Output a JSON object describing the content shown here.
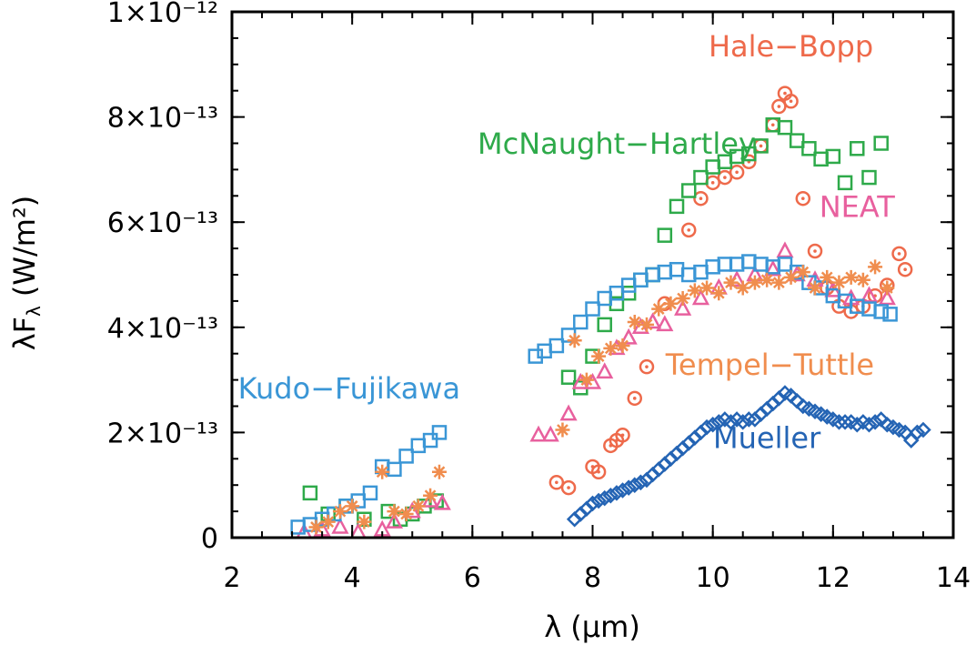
{
  "chart_data": {
    "type": "scatter",
    "xlabel": "λ (μm)",
    "ylabel": "λF",
    "ylabel_sub": "λ",
    "ylabel_unit": "(W/m²)",
    "xlim": [
      2,
      14
    ],
    "ylim": [
      0,
      1e-12
    ],
    "x_ticks": [
      {
        "value": 2,
        "label": "2"
      },
      {
        "value": 4,
        "label": "4"
      },
      {
        "value": 6,
        "label": "6"
      },
      {
        "value": 8,
        "label": "8"
      },
      {
        "value": 10,
        "label": "10"
      },
      {
        "value": 12,
        "label": "12"
      },
      {
        "value": 14,
        "label": "14"
      }
    ],
    "y_ticks": [
      {
        "value": 0,
        "label": "0"
      },
      {
        "value": 2e-13,
        "label": "2×10⁻¹³"
      },
      {
        "value": 4e-13,
        "label": "4×10⁻¹³"
      },
      {
        "value": 6e-13,
        "label": "6×10⁻¹³"
      },
      {
        "value": 8e-13,
        "label": "8×10⁻¹³"
      },
      {
        "value": 1e-12,
        "label": "1×10⁻¹²"
      }
    ],
    "grid": false,
    "series": [
      {
        "name": "Hale-Bopp",
        "color": "#ee6a4b",
        "marker": "circle-dot",
        "label_at": [
          11.3,
          9.15e-13
        ],
        "x": [
          7.4,
          7.6,
          8.0,
          8.1,
          8.3,
          8.4,
          8.5,
          8.7,
          8.9,
          9.2,
          9.6,
          9.8,
          10.0,
          10.2,
          10.4,
          10.6,
          10.8,
          11.0,
          11.1,
          11.2,
          11.3,
          11.5,
          11.7,
          11.9,
          12.1,
          12.3,
          12.5,
          12.7,
          12.9,
          13.1,
          13.2
        ],
        "y": [
          1.05e-13,
          9.5e-14,
          1.35e-13,
          1.25e-13,
          1.75e-13,
          1.85e-13,
          1.95e-13,
          2.65e-13,
          3.25e-13,
          4.45e-13,
          5.85e-13,
          6.45e-13,
          6.75e-13,
          6.85e-13,
          6.95e-13,
          7.15e-13,
          7.45e-13,
          7.85e-13,
          8.2e-13,
          8.45e-13,
          8.3e-13,
          6.45e-13,
          5.45e-13,
          4.75e-13,
          4.4e-13,
          4.3e-13,
          4.4e-13,
          4.6e-13,
          4.8e-13,
          5.4e-13,
          5.1e-13
        ]
      },
      {
        "name": "McNaught-Hartley",
        "color": "#2eaa4a",
        "marker": "square",
        "label_at": [
          8.4,
          7.3e-13
        ],
        "x": [
          3.3,
          3.6,
          3.9,
          4.2,
          4.6,
          4.8,
          5.0,
          5.2,
          5.4,
          7.6,
          7.8,
          8.0,
          8.2,
          8.4,
          8.6,
          8.8,
          9.0,
          9.2,
          9.4,
          9.6,
          9.8,
          10.0,
          10.2,
          10.4,
          10.6,
          10.8,
          11.0,
          11.2,
          11.4,
          11.6,
          11.8,
          12.0,
          12.2,
          12.4,
          12.6,
          12.8
        ],
        "y": [
          8.5e-14,
          4.5e-14,
          6e-14,
          3.5e-14,
          5e-14,
          3.5e-14,
          4.5e-14,
          6e-14,
          7e-14,
          3.05e-13,
          2.85e-13,
          3.45e-13,
          4.05e-13,
          4.45e-13,
          4.65e-13,
          4.9e-13,
          5e-13,
          5.75e-13,
          6.3e-13,
          6.6e-13,
          6.85e-13,
          7.05e-13,
          7.15e-13,
          7.25e-13,
          7.3e-13,
          7.45e-13,
          7.85e-13,
          7.8e-13,
          7.55e-13,
          7.4e-13,
          7.2e-13,
          7.25e-13,
          6.75e-13,
          7.4e-13,
          6.85e-13,
          7.5e-13
        ]
      },
      {
        "name": "NEAT",
        "color": "#e8609e",
        "marker": "triangle",
        "label_at": [
          12.4,
          6.1e-13
        ],
        "x": [
          3.2,
          3.5,
          3.8,
          4.1,
          4.5,
          4.7,
          5.0,
          5.3,
          5.5,
          7.1,
          7.3,
          7.6,
          7.8,
          8.0,
          8.2,
          8.4,
          8.6,
          8.8,
          9.0,
          9.2,
          9.5,
          9.8,
          10.1,
          10.4,
          10.7,
          11.0,
          11.2,
          11.4,
          11.7,
          12.0,
          12.3,
          12.6,
          12.9
        ],
        "y": [
          1e-14,
          1.5e-14,
          2e-14,
          1e-14,
          1.5e-14,
          3e-14,
          5e-14,
          7e-14,
          6.5e-14,
          1.95e-13,
          1.95e-13,
          2.35e-13,
          2.95e-13,
          2.95e-13,
          3.15e-13,
          3.6e-13,
          3.8e-13,
          4e-13,
          4.1e-13,
          4.05e-13,
          4.35e-13,
          4.55e-13,
          4.75e-13,
          4.9e-13,
          5e-13,
          5.1e-13,
          5.45e-13,
          5e-13,
          4.9e-13,
          4.7e-13,
          4.55e-13,
          4.6e-13,
          4.55e-13
        ]
      },
      {
        "name": "Kudo-Fujikawa",
        "color": "#3a96d6",
        "marker": "square",
        "label_at": [
          3.95,
          2.65e-13
        ],
        "x": [
          3.1,
          3.3,
          3.5,
          3.7,
          3.9,
          4.1,
          4.3,
          4.5,
          4.7,
          4.9,
          5.1,
          5.3,
          5.45,
          7.05,
          7.2,
          7.4,
          7.6,
          7.8,
          8.0,
          8.2,
          8.4,
          8.6,
          8.8,
          9.0,
          9.2,
          9.4,
          9.6,
          9.8,
          10.0,
          10.2,
          10.4,
          10.6,
          10.8,
          11.0,
          11.2,
          11.4,
          11.6,
          11.8,
          12.0,
          12.2,
          12.4,
          12.6,
          12.8,
          12.95
        ],
        "y": [
          2e-14,
          2.5e-14,
          3.5e-14,
          4.5e-14,
          6e-14,
          7e-14,
          8.5e-14,
          1.35e-13,
          1.3e-13,
          1.55e-13,
          1.75e-13,
          1.85e-13,
          2e-13,
          3.45e-13,
          3.55e-13,
          3.65e-13,
          3.85e-13,
          4.1e-13,
          4.35e-13,
          4.55e-13,
          4.65e-13,
          4.8e-13,
          4.9e-13,
          5e-13,
          5.05e-13,
          5.1e-13,
          5e-13,
          5.05e-13,
          5.15e-13,
          5.2e-13,
          5.2e-13,
          5.25e-13,
          5.2e-13,
          5.15e-13,
          5.2e-13,
          5.05e-13,
          4.85e-13,
          4.75e-13,
          4.6e-13,
          4.5e-13,
          4.4e-13,
          4.35e-13,
          4.3e-13,
          4.25e-13
        ]
      },
      {
        "name": "Tempel-Tuttle",
        "color": "#f08d4e",
        "marker": "asterisk",
        "label_at": [
          10.95,
          3.1e-13
        ],
        "x": [
          3.4,
          3.6,
          3.8,
          4.0,
          4.2,
          4.5,
          4.7,
          4.9,
          5.1,
          5.3,
          5.45,
          7.5,
          7.7,
          7.9,
          8.1,
          8.3,
          8.5,
          8.7,
          8.9,
          9.1,
          9.3,
          9.5,
          9.7,
          9.9,
          10.1,
          10.3,
          10.5,
          10.7,
          10.9,
          11.1,
          11.3,
          11.5,
          11.7,
          11.9,
          12.1,
          12.3,
          12.5,
          12.7,
          12.9
        ],
        "y": [
          2e-14,
          3e-14,
          5e-14,
          6e-14,
          3e-14,
          1.25e-13,
          5e-14,
          4.5e-14,
          6e-14,
          8e-14,
          1.25e-13,
          2.05e-13,
          3.75e-13,
          3e-13,
          3.45e-13,
          3.6e-13,
          3.65e-13,
          4.1e-13,
          4.05e-13,
          4.35e-13,
          4.45e-13,
          4.55e-13,
          4.7e-13,
          4.75e-13,
          4.65e-13,
          4.85e-13,
          4.75e-13,
          4.85e-13,
          4.9e-13,
          4.85e-13,
          4.95e-13,
          5.05e-13,
          4.75e-13,
          4.95e-13,
          4.85e-13,
          4.95e-13,
          4.9e-13,
          5.15e-13,
          4.75e-13
        ]
      },
      {
        "name": "Mueller",
        "color": "#2464b4",
        "marker": "diamond",
        "label_at": [
          10.9,
          1.7e-13
        ],
        "x": [
          7.7,
          7.8,
          7.9,
          8.0,
          8.1,
          8.2,
          8.3,
          8.4,
          8.5,
          8.6,
          8.7,
          8.8,
          8.9,
          9.0,
          9.1,
          9.2,
          9.3,
          9.4,
          9.5,
          9.6,
          9.7,
          9.8,
          9.9,
          10.0,
          10.1,
          10.2,
          10.3,
          10.4,
          10.5,
          10.6,
          10.7,
          10.8,
          10.9,
          11.0,
          11.1,
          11.2,
          11.3,
          11.4,
          11.5,
          11.6,
          11.7,
          11.8,
          11.9,
          12.0,
          12.1,
          12.2,
          12.3,
          12.4,
          12.5,
          12.6,
          12.7,
          12.8,
          12.9,
          13.0,
          13.1,
          13.2,
          13.3,
          13.4,
          13.5
        ],
        "y": [
          3.5e-14,
          4.5e-14,
          5.5e-14,
          6.5e-14,
          7e-14,
          7.5e-14,
          8e-14,
          8.5e-14,
          9e-14,
          9.5e-14,
          1e-13,
          1.05e-13,
          1.1e-13,
          1.2e-13,
          1.3e-13,
          1.4e-13,
          1.5e-13,
          1.6e-13,
          1.7e-13,
          1.8e-13,
          1.9e-13,
          2e-13,
          2.1e-13,
          2.15e-13,
          2.2e-13,
          2.25e-13,
          2.2e-13,
          2.25e-13,
          2.2e-13,
          2.25e-13,
          2.25e-13,
          2.35e-13,
          2.45e-13,
          2.55e-13,
          2.65e-13,
          2.75e-13,
          2.7e-13,
          2.6e-13,
          2.5e-13,
          2.45e-13,
          2.4e-13,
          2.35e-13,
          2.3e-13,
          2.25e-13,
          2.2e-13,
          2.2e-13,
          2.2e-13,
          2.15e-13,
          2.2e-13,
          2.15e-13,
          2.2e-13,
          2.25e-13,
          2.15e-13,
          2.1e-13,
          2.05e-13,
          2e-13,
          1.85e-13,
          2e-13,
          2.05e-13
        ]
      }
    ]
  }
}
